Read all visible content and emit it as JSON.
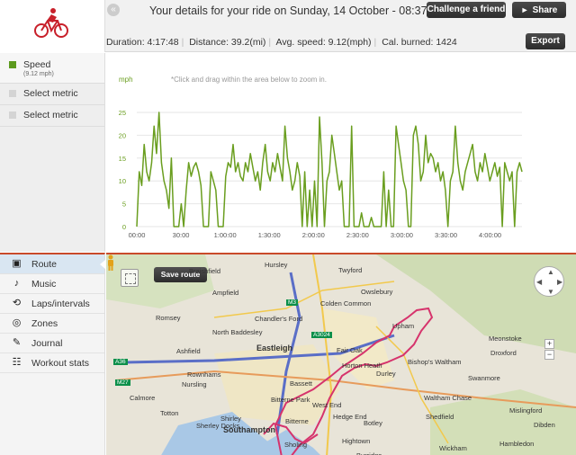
{
  "header": {
    "back_glyph": "«",
    "title": "Your details for your ride on Sunday, 14 October - 08:37",
    "challenge_label": "Challenge a friend",
    "share_label": "Share",
    "export_label": "Export"
  },
  "stats": {
    "duration": "Duration: 4:17:48",
    "distance": "Distance: 39.2(mi)",
    "avg_speed": "Avg. speed: 9.12(mph)",
    "calories": "Cal. burned: 1424"
  },
  "metrics": {
    "speed_label": "Speed",
    "speed_sub": "(9.12 mph)",
    "select1": "Select metric",
    "select2": "Select metric"
  },
  "chart_hint": "*Click and drag within the area below to zoom in.",
  "chart_data": {
    "type": "line",
    "ylabel": "mph",
    "ylim": [
      0,
      25
    ],
    "y_ticks": [
      "0",
      "5",
      "10",
      "15",
      "20",
      "25"
    ],
    "x_ticks": [
      "00:00",
      "30:00",
      "1:00:00",
      "1:30:00",
      "2:00:00",
      "2:30:00",
      "3:00:00",
      "3:30:00",
      "4:00:00"
    ],
    "color": "#6a9e1f",
    "series": [
      {
        "values": [
          0,
          12,
          9,
          18,
          12,
          10,
          14,
          22,
          16,
          25,
          14,
          10,
          8,
          4,
          15,
          0,
          0,
          0,
          5,
          0,
          8,
          14,
          11,
          13,
          14,
          12,
          9,
          0,
          0,
          0,
          12,
          10,
          8,
          0,
          0,
          0,
          11,
          14,
          13,
          18,
          12,
          14,
          11,
          10,
          14,
          12,
          16,
          13,
          10,
          12,
          8,
          14,
          18,
          12,
          10,
          14,
          12,
          16,
          13,
          10,
          22,
          15,
          12,
          8,
          10,
          14,
          11,
          0,
          12,
          0,
          8,
          0,
          10,
          0,
          24,
          14,
          0,
          10,
          12,
          20,
          16,
          12,
          8,
          10,
          0,
          0,
          0,
          22,
          0,
          0,
          0,
          3,
          0,
          0,
          0,
          2,
          0,
          0,
          0,
          0,
          12,
          0,
          8,
          0,
          0,
          22,
          18,
          14,
          10,
          8,
          0,
          0,
          20,
          22,
          18,
          10,
          12,
          20,
          14,
          16,
          15,
          12,
          14,
          10,
          12,
          8,
          0,
          10,
          12,
          22,
          14,
          10,
          8,
          12,
          14,
          16,
          18,
          12,
          10,
          14,
          12,
          16,
          13,
          10,
          12,
          14,
          11,
          13,
          0,
          14,
          12,
          10,
          12,
          0,
          12,
          14,
          12
        ]
      }
    ]
  },
  "nav": [
    {
      "icon": "route-icon",
      "label": "Route"
    },
    {
      "icon": "music-icon",
      "label": "Music"
    },
    {
      "icon": "laps-icon",
      "label": "Laps/intervals"
    },
    {
      "icon": "zones-icon",
      "label": "Zones"
    },
    {
      "icon": "journal-icon",
      "label": "Journal"
    },
    {
      "icon": "workout-stats-icon",
      "label": "Workout stats"
    }
  ],
  "map": {
    "save_route_label": "Save route",
    "places": [
      "Hursley",
      "Braishfield",
      "Twyford",
      "Owslebury",
      "Ampfield",
      "Colden Common",
      "Romsey",
      "Chandler's Ford",
      "North Baddesley",
      "Eastleigh",
      "Upham",
      "Fair Oak",
      "Horton Heath",
      "Bishop's Waltham",
      "Durley",
      "Meonstoke",
      "Droxford",
      "Swanmore",
      "Ashfield",
      "Rownhams",
      "Nursling",
      "Calmore",
      "Totton",
      "Shirley",
      "Bitterne Park",
      "West End",
      "Hedge End",
      "Bitterne",
      "Southampton",
      "Sholing",
      "Hightown",
      "Botley",
      "Waltham Chase",
      "Shedfield",
      "Wickham",
      "Hambledon",
      "Mislingford",
      "Dibden",
      "Burridge",
      "Bassett",
      "Sherley Docks"
    ],
    "roads": [
      "A36",
      "M27",
      "M3",
      "A3024"
    ]
  }
}
